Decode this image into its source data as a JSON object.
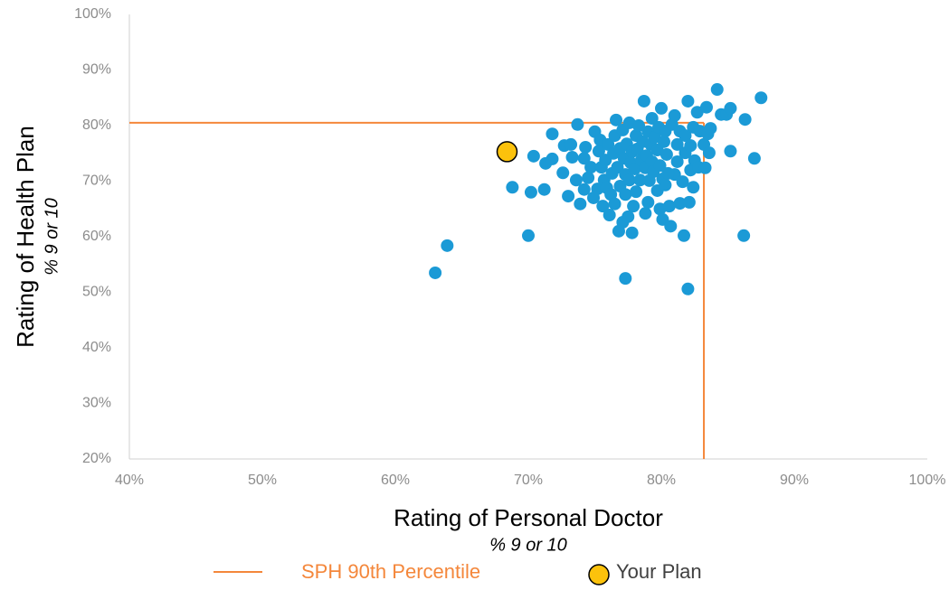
{
  "chart_data": {
    "type": "scatter",
    "x_label": "Rating of Personal Doctor",
    "x_sublabel": "% 9 or 10",
    "y_label": "Rating of Health Plan",
    "y_sublabel": "% 9 or 10",
    "xlim": [
      40,
      100
    ],
    "xticks": [
      {
        "value": 40,
        "label": "40%"
      },
      {
        "value": 50,
        "label": "50%"
      },
      {
        "value": 60,
        "label": "60%"
      },
      {
        "value": 70,
        "label": "70%"
      },
      {
        "value": 80,
        "label": "80%"
      },
      {
        "value": 90,
        "label": "90%"
      },
      {
        "value": 100,
        "label": "100%"
      }
    ],
    "ylim": [
      20,
      100
    ],
    "yticks": [
      {
        "value": 20,
        "label": "20%"
      },
      {
        "value": 30,
        "label": "30%"
      },
      {
        "value": 40,
        "label": "40%"
      },
      {
        "value": 50,
        "label": "50%"
      },
      {
        "value": 60,
        "label": "60%"
      },
      {
        "value": 70,
        "label": "70%"
      },
      {
        "value": 80,
        "label": "80%"
      },
      {
        "value": 90,
        "label": "90%"
      },
      {
        "value": 100,
        "label": "100%"
      }
    ],
    "reference_lines": {
      "name": "SPH 90th Percentile",
      "color": "#f4873b",
      "x": 83.2,
      "y": 80.5
    },
    "series": [
      {
        "color": "#1b9ad6",
        "x": [
          63.0,
          63.9,
          70.0,
          68.8,
          70.2,
          71.2,
          70.4,
          71.3,
          71.8,
          71.8,
          72.6,
          72.7,
          73.0,
          73.2,
          73.3,
          73.7,
          73.6,
          73.9,
          74.2,
          74.2,
          74.3,
          74.5,
          74.7,
          74.9,
          75.0,
          75.2,
          75.3,
          75.4,
          75.5,
          75.6,
          75.7,
          75.8,
          75.9,
          76.0,
          76.1,
          76.2,
          76.3,
          76.4,
          76.5,
          76.5,
          76.6,
          76.7,
          76.8,
          76.9,
          76.9,
          77.1,
          77.1,
          77.2,
          77.3,
          77.3,
          77.4,
          77.5,
          77.6,
          77.6,
          77.7,
          77.8,
          77.3,
          77.8,
          77.9,
          78.0,
          78.1,
          78.1,
          78.2,
          78.3,
          78.4,
          78.5,
          78.6,
          78.7,
          78.8,
          78.8,
          78.9,
          79.0,
          79.0,
          79.1,
          79.2,
          79.3,
          79.3,
          79.4,
          79.5,
          79.7,
          79.7,
          79.8,
          79.9,
          79.9,
          80.0,
          80.1,
          80.1,
          80.2,
          80.3,
          80.3,
          80.4,
          80.6,
          80.7,
          80.8,
          81.0,
          81.0,
          81.2,
          81.2,
          81.4,
          81.4,
          81.6,
          81.7,
          81.8,
          81.8,
          82.0,
          82.0,
          82.1,
          82.2,
          82.2,
          82.4,
          82.4,
          82.5,
          82.7,
          82.8,
          82.9,
          83.2,
          83.3,
          83.4,
          83.5,
          83.6,
          83.7,
          84.2,
          84.5,
          84.9,
          85.2,
          85.2,
          86.3,
          86.2,
          87.0,
          87.5,
          80.5
        ],
        "values": [
          53.5,
          58.4,
          60.2,
          68.9,
          68.0,
          68.5,
          74.5,
          73.2,
          78.5,
          74.0,
          71.5,
          76.4,
          67.3,
          76.6,
          74.3,
          80.2,
          70.2,
          65.9,
          68.5,
          74.1,
          76.1,
          70.6,
          72.5,
          67.0,
          78.9,
          68.6,
          75.4,
          77.4,
          72.5,
          65.5,
          70.2,
          73.8,
          68.8,
          76.6,
          63.9,
          67.6,
          71.4,
          75.0,
          78.2,
          65.9,
          81.0,
          72.5,
          61.0,
          69.1,
          75.9,
          79.2,
          62.6,
          74.1,
          67.6,
          71.2,
          76.7,
          63.6,
          70.2,
          80.5,
          73.3,
          75.3,
          52.5,
          60.7,
          65.5,
          72.2,
          78.2,
          68.1,
          75.8,
          80.0,
          70.2,
          73.8,
          77.1,
          84.4,
          64.2,
          72.4,
          74.6,
          78.9,
          66.2,
          70.1,
          76.6,
          81.3,
          73.5,
          71.7,
          77.9,
          68.3,
          75.6,
          79.7,
          72.8,
          65.0,
          83.1,
          70.4,
          63.1,
          77.1,
          69.3,
          79.0,
          74.8,
          65.5,
          61.9,
          80.2,
          71.2,
          81.8,
          73.5,
          76.6,
          66.0,
          79.0,
          69.9,
          60.2,
          75.1,
          78.2,
          50.6,
          84.4,
          66.2,
          72.0,
          76.4,
          68.9,
          79.7,
          73.7,
          82.4,
          72.5,
          79.0,
          76.6,
          72.4,
          83.3,
          78.5,
          75.1,
          79.5,
          86.5,
          82.0,
          82.0,
          83.1,
          75.4,
          81.1,
          60.2,
          74.1,
          85.0,
          71.4
        ]
      },
      {
        "name": "Your Plan",
        "color": "#fcc20c",
        "x": [
          68.4
        ],
        "values": [
          75.3
        ]
      }
    ]
  }
}
